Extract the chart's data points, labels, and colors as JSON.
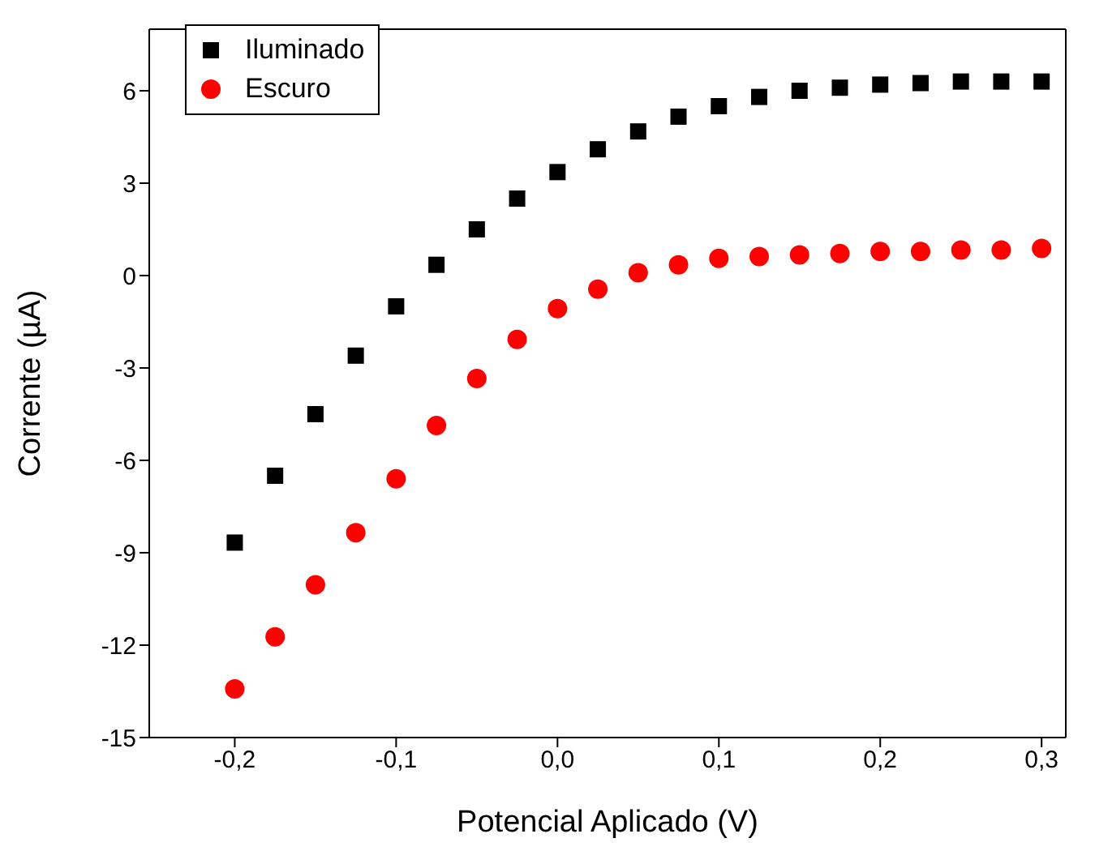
{
  "chart_data": {
    "type": "scatter",
    "xlabel": "Potencial Aplicado (V)",
    "ylabel": "Corrente (µA)",
    "x": [
      -0.2,
      -0.175,
      -0.15,
      -0.125,
      -0.1,
      -0.075,
      -0.05,
      -0.025,
      0,
      0.025,
      0.05,
      0.075,
      0.1,
      0.125,
      0.15,
      0.175,
      0.2,
      0.225,
      0.25,
      0.275,
      0.3
    ],
    "series": [
      {
        "name": "Iluminado",
        "color": "#000000",
        "marker": "square",
        "values": [
          -8.67,
          -6.5,
          -4.5,
          -2.6,
          -1.0,
          0.35,
          1.5,
          2.5,
          3.36,
          4.1,
          4.68,
          5.16,
          5.5,
          5.8,
          6.0,
          6.1,
          6.2,
          6.25,
          6.3,
          6.3,
          6.3
        ]
      },
      {
        "name": "Escuro",
        "color": "#ff0000",
        "marker": "circle",
        "values": [
          -13.42,
          -11.73,
          -10.04,
          -8.35,
          -6.6,
          -4.87,
          -3.34,
          -2.07,
          -1.07,
          -0.44,
          0.09,
          0.35,
          0.56,
          0.62,
          0.67,
          0.72,
          0.78,
          0.78,
          0.83,
          0.83,
          0.88
        ]
      }
    ],
    "xlim": [
      -0.253,
      0.315
    ],
    "xticks": [
      {
        "value": -0.2,
        "label": "-0,2"
      },
      {
        "value": -0.1,
        "label": "-0,1"
      },
      {
        "value": 0,
        "label": "0,0"
      },
      {
        "value": 0.1,
        "label": "0,1"
      },
      {
        "value": 0.2,
        "label": "0,2"
      },
      {
        "value": 0.3,
        "label": "0,3"
      }
    ],
    "ylim": [
      -15,
      8
    ],
    "yticks": [
      -15,
      -12,
      -9,
      -6,
      -3,
      0,
      3,
      6
    ],
    "legend": "top left"
  }
}
